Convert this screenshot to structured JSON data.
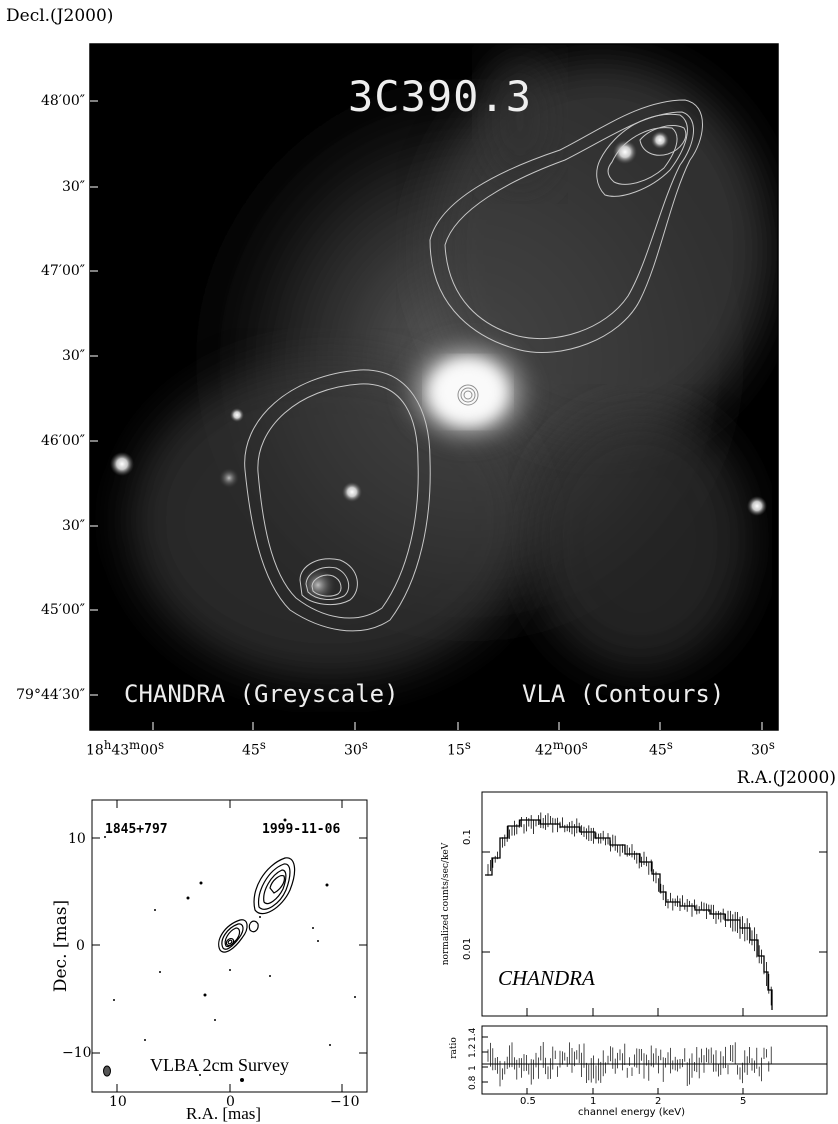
{
  "top_panel": {
    "title": "3C390.3",
    "ylabel": "Decl.(J2000)",
    "xlabel": "R.A.(J2000)",
    "chandra_label": "CHANDRA (Greyscale)",
    "vla_label": "VLA (Contours)",
    "y_ticks": [
      "48′00″",
      "30″",
      "47′00″",
      "30″",
      "46′00″",
      "30″",
      "45′00″",
      "79°44′30″"
    ],
    "x_ticks": [
      {
        "h": "18",
        "m": "43",
        "s": "00"
      },
      {
        "s": "45"
      },
      {
        "s": "30"
      },
      {
        "s": "15"
      },
      {
        "m": "42",
        "s": "00"
      },
      {
        "s": "45"
      },
      {
        "s": "30"
      }
    ]
  },
  "vlba_panel": {
    "source": "1845+797",
    "date": "1999-11-06",
    "survey": "VLBA 2cm Survey",
    "xlabel": "R.A. [mas]",
    "ylabel": "Dec. [mas]",
    "x_ticks": [
      "10",
      "0",
      "−10"
    ],
    "y_ticks": [
      "10",
      "0",
      "−10"
    ]
  },
  "spectrum_panel": {
    "label": "CHANDRA",
    "ylabel": "normalized counts/sec/keV",
    "ratio_label": "ratio",
    "xlabel": "channel energy (keV)",
    "y_ticks": [
      "0.1",
      "0.01"
    ],
    "ratio_ticks": [
      "0.8",
      "1",
      "1.2",
      "1.4"
    ],
    "x_ticks": [
      "0.5",
      "1",
      "2",
      "5"
    ]
  }
}
